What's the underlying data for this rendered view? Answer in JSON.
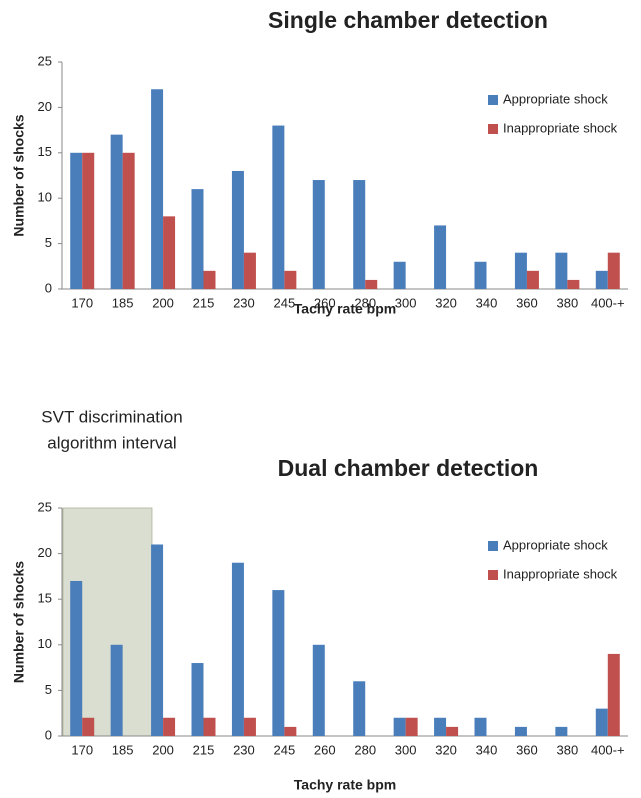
{
  "chart_data": [
    {
      "type": "bar",
      "title": "Single chamber detection",
      "x_label": "Tachy rate bpm",
      "y_label": "Number of shocks",
      "categories": [
        "170",
        "185",
        "200",
        "215",
        "230",
        "245",
        "260",
        "280",
        "300",
        "320",
        "340",
        "360",
        "380",
        "400-+"
      ],
      "series": [
        {
          "name": "Appropriate shock",
          "color": "#4a7ebb",
          "values": [
            15,
            17,
            22,
            11,
            13,
            18,
            12,
            12,
            3,
            7,
            3,
            4,
            4,
            2
          ]
        },
        {
          "name": "Inappropriate shock",
          "color": "#c0504d",
          "values": [
            15,
            15,
            8,
            2,
            4,
            2,
            0,
            1,
            0,
            0,
            0,
            2,
            1,
            4
          ]
        }
      ],
      "ylim": [
        0,
        25
      ],
      "yticks": [
        0,
        5,
        10,
        15,
        20,
        25
      ],
      "grid": false,
      "legend": "upper right"
    },
    {
      "type": "bar",
      "title": "Dual chamber detection",
      "x_label": "Tachy rate bpm",
      "y_label": "Number of shocks",
      "annotation": [
        "SVT discrimination",
        "algorithm interval"
      ],
      "categories": [
        "170",
        "185",
        "200",
        "215",
        "230",
        "245",
        "260",
        "280",
        "300",
        "320",
        "340",
        "360",
        "380",
        "400-+"
      ],
      "series": [
        {
          "name": "Appropriate shock",
          "color": "#4a7ebb",
          "values": [
            17,
            10,
            21,
            8,
            19,
            16,
            10,
            6,
            2,
            2,
            2,
            1,
            1,
            3
          ]
        },
        {
          "name": "Inappropriate shock",
          "color": "#c0504d",
          "values": [
            2,
            0,
            2,
            2,
            2,
            1,
            0,
            0,
            2,
            1,
            0,
            0,
            0,
            9
          ]
        }
      ],
      "ylim": [
        0,
        25
      ],
      "yticks": [
        0,
        5,
        10,
        15,
        20,
        25
      ],
      "grid": false,
      "legend": "upper right"
    }
  ]
}
